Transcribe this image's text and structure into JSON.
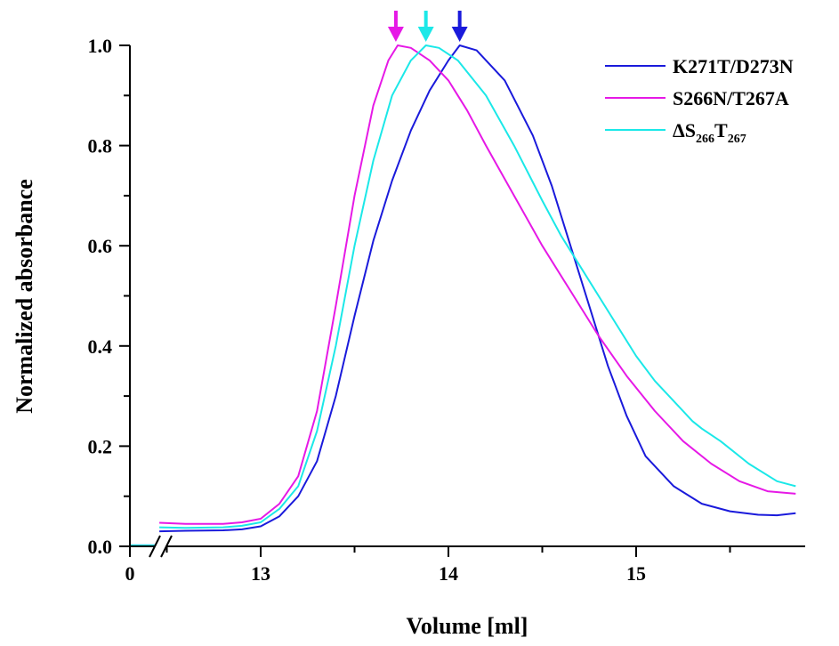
{
  "chart_data": {
    "type": "line",
    "title": "",
    "xlabel": "Volume [ml]",
    "ylabel": "Normalized absorbance",
    "x_break": {
      "from": 0.15,
      "to": 12.4
    },
    "xlim": [
      0,
      15.85
    ],
    "ylim": [
      0,
      1.0
    ],
    "x_ticks": [
      {
        "value": 0,
        "label": "0"
      },
      {
        "value": 13,
        "label": "13"
      },
      {
        "value": 14,
        "label": "14"
      },
      {
        "value": 15,
        "label": "15"
      }
    ],
    "y_ticks": [
      {
        "value": 0.0,
        "label": "0.0"
      },
      {
        "value": 0.2,
        "label": "0.2"
      },
      {
        "value": 0.4,
        "label": "0.4"
      },
      {
        "value": 0.6,
        "label": "0.6"
      },
      {
        "value": 0.8,
        "label": "0.8"
      },
      {
        "value": 1.0,
        "label": "1.0"
      }
    ],
    "grid": false,
    "legend_position": "top-right",
    "series": [
      {
        "name": "K271T/D273N",
        "color": "#1a1adb",
        "peak_arrow_x": 14.06,
        "points": [
          [
            0,
            0.002
          ],
          [
            0.15,
            0.002
          ],
          [
            12.46,
            0.03
          ],
          [
            12.6,
            0.031
          ],
          [
            12.8,
            0.032
          ],
          [
            12.9,
            0.034
          ],
          [
            13.0,
            0.04
          ],
          [
            13.1,
            0.06
          ],
          [
            13.2,
            0.1
          ],
          [
            13.3,
            0.17
          ],
          [
            13.4,
            0.3
          ],
          [
            13.5,
            0.46
          ],
          [
            13.6,
            0.61
          ],
          [
            13.7,
            0.73
          ],
          [
            13.8,
            0.83
          ],
          [
            13.9,
            0.91
          ],
          [
            14.0,
            0.97
          ],
          [
            14.06,
            1.0
          ],
          [
            14.15,
            0.99
          ],
          [
            14.3,
            0.93
          ],
          [
            14.45,
            0.82
          ],
          [
            14.55,
            0.72
          ],
          [
            14.65,
            0.6
          ],
          [
            14.75,
            0.48
          ],
          [
            14.85,
            0.36
          ],
          [
            14.95,
            0.26
          ],
          [
            15.05,
            0.18
          ],
          [
            15.2,
            0.12
          ],
          [
            15.35,
            0.085
          ],
          [
            15.5,
            0.07
          ],
          [
            15.65,
            0.063
          ],
          [
            15.75,
            0.062
          ],
          [
            15.85,
            0.066
          ]
        ]
      },
      {
        "name": "S266N/T267A",
        "color": "#e619e6",
        "peak_arrow_x": 13.72,
        "points": [
          [
            12.46,
            0.047
          ],
          [
            12.6,
            0.045
          ],
          [
            12.8,
            0.045
          ],
          [
            12.9,
            0.048
          ],
          [
            13.0,
            0.055
          ],
          [
            13.1,
            0.085
          ],
          [
            13.2,
            0.14
          ],
          [
            13.3,
            0.27
          ],
          [
            13.4,
            0.48
          ],
          [
            13.5,
            0.7
          ],
          [
            13.6,
            0.88
          ],
          [
            13.68,
            0.97
          ],
          [
            13.73,
            1.0
          ],
          [
            13.8,
            0.995
          ],
          [
            13.9,
            0.97
          ],
          [
            14.0,
            0.93
          ],
          [
            14.1,
            0.87
          ],
          [
            14.2,
            0.8
          ],
          [
            14.35,
            0.7
          ],
          [
            14.5,
            0.6
          ],
          [
            14.65,
            0.51
          ],
          [
            14.8,
            0.42
          ],
          [
            14.95,
            0.34
          ],
          [
            15.1,
            0.27
          ],
          [
            15.25,
            0.21
          ],
          [
            15.4,
            0.165
          ],
          [
            15.55,
            0.13
          ],
          [
            15.7,
            0.11
          ],
          [
            15.85,
            0.105
          ]
        ]
      },
      {
        "name": "ΔS266T267",
        "color": "#1be8e8",
        "peak_arrow_x": 13.88,
        "points": [
          [
            0,
            0.002
          ],
          [
            0.15,
            0.002
          ],
          [
            12.46,
            0.038
          ],
          [
            12.6,
            0.037
          ],
          [
            12.8,
            0.038
          ],
          [
            12.9,
            0.041
          ],
          [
            13.0,
            0.048
          ],
          [
            13.1,
            0.075
          ],
          [
            13.2,
            0.12
          ],
          [
            13.3,
            0.23
          ],
          [
            13.4,
            0.4
          ],
          [
            13.5,
            0.6
          ],
          [
            13.6,
            0.77
          ],
          [
            13.7,
            0.9
          ],
          [
            13.8,
            0.97
          ],
          [
            13.88,
            1.0
          ],
          [
            13.95,
            0.995
          ],
          [
            14.05,
            0.97
          ],
          [
            14.2,
            0.9
          ],
          [
            14.35,
            0.8
          ],
          [
            14.5,
            0.69
          ],
          [
            14.6,
            0.62
          ],
          [
            14.7,
            0.56
          ],
          [
            14.85,
            0.47
          ],
          [
            15.0,
            0.38
          ],
          [
            15.1,
            0.33
          ],
          [
            15.2,
            0.29
          ],
          [
            15.3,
            0.25
          ],
          [
            15.35,
            0.235
          ],
          [
            15.45,
            0.21
          ],
          [
            15.6,
            0.165
          ],
          [
            15.75,
            0.13
          ],
          [
            15.85,
            0.12
          ]
        ]
      }
    ],
    "legend": [
      {
        "text": "K271T/D273N",
        "color": "#1a1adb"
      },
      {
        "text": "S266N/T267A",
        "color": "#e619e6"
      },
      {
        "main1": "ΔS",
        "sub1": "266",
        "main2": "T",
        "sub2": "267",
        "color": "#1be8e8"
      }
    ]
  }
}
